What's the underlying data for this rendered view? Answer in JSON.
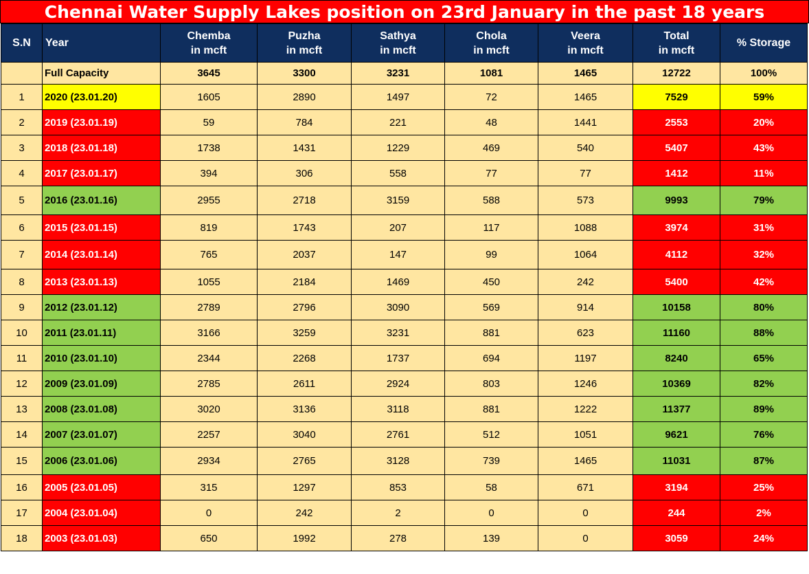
{
  "title": "Chennai Water Supply Lakes position on 23rd January in the past 18 years",
  "colors": {
    "header_bg": "#0f2e5e",
    "cell_bg": "#ffe6a1",
    "red": "#ff0000",
    "yellow": "#ffff00",
    "green": "#92d050"
  },
  "headers": {
    "sn": "S.N",
    "year": "Year",
    "chemba": [
      "Chemba",
      "in mcft"
    ],
    "puzha": [
      "Puzha",
      "in mcft"
    ],
    "sathya": [
      "Sathya",
      "in mcft"
    ],
    "chola": [
      "Chola",
      "in mcft"
    ],
    "veera": [
      "Veera",
      "in mcft"
    ],
    "total": [
      "Total",
      "in mcft"
    ],
    "storage": "% Storage"
  },
  "capacity": {
    "sn": "",
    "year": "Full Capacity",
    "chemba": "3645",
    "puzha": "3300",
    "sathya": "3231",
    "chola": "1081",
    "veera": "1465",
    "total": "12722",
    "storage": "100%"
  },
  "rows": [
    {
      "sn": "1",
      "year": "2020 (23.01.20)",
      "chemba": "1605",
      "puzha": "2890",
      "sathya": "1497",
      "chola": "72",
      "veera": "1465",
      "total": "7529",
      "storage": "59%",
      "status": "yellow"
    },
    {
      "sn": "2",
      "year": "2019 (23.01.19)",
      "chemba": "59",
      "puzha": "784",
      "sathya": "221",
      "chola": "48",
      "veera": "1441",
      "total": "2553",
      "storage": "20%",
      "status": "red"
    },
    {
      "sn": "3",
      "year": "2018 (23.01.18)",
      "chemba": "1738",
      "puzha": "1431",
      "sathya": "1229",
      "chola": "469",
      "veera": "540",
      "total": "5407",
      "storage": "43%",
      "status": "red"
    },
    {
      "sn": "4",
      "year": "2017 (23.01.17)",
      "chemba": "394",
      "puzha": "306",
      "sathya": "558",
      "chola": "77",
      "veera": "77",
      "total": "1412",
      "storage": "11%",
      "status": "red"
    },
    {
      "sn": "5",
      "year": "2016 (23.01.16)",
      "chemba": "2955",
      "puzha": "2718",
      "sathya": "3159",
      "chola": "588",
      "veera": "573",
      "total": "9993",
      "storage": "79%",
      "status": "green"
    },
    {
      "sn": "6",
      "year": "2015 (23.01.15)",
      "chemba": "819",
      "puzha": "1743",
      "sathya": "207",
      "chola": "117",
      "veera": "1088",
      "total": "3974",
      "storage": "31%",
      "status": "red"
    },
    {
      "sn": "7",
      "year": "2014 (23.01.14)",
      "chemba": "765",
      "puzha": "2037",
      "sathya": "147",
      "chola": "99",
      "veera": "1064",
      "total": "4112",
      "storage": "32%",
      "status": "red"
    },
    {
      "sn": "8",
      "year": "2013 (23.01.13)",
      "chemba": "1055",
      "puzha": "2184",
      "sathya": "1469",
      "chola": "450",
      "veera": "242",
      "total": "5400",
      "storage": "42%",
      "status": "red"
    },
    {
      "sn": "9",
      "year": "2012 (23.01.12)",
      "chemba": "2789",
      "puzha": "2796",
      "sathya": "3090",
      "chola": "569",
      "veera": "914",
      "total": "10158",
      "storage": "80%",
      "status": "green"
    },
    {
      "sn": "10",
      "year": "2011 (23.01.11)",
      "chemba": "3166",
      "puzha": "3259",
      "sathya": "3231",
      "chola": "881",
      "veera": "623",
      "total": "11160",
      "storage": "88%",
      "status": "green"
    },
    {
      "sn": "11",
      "year": "2010 (23.01.10)",
      "chemba": "2344",
      "puzha": "2268",
      "sathya": "1737",
      "chola": "694",
      "veera": "1197",
      "total": "8240",
      "storage": "65%",
      "status": "green"
    },
    {
      "sn": "12",
      "year": "2009 (23.01.09)",
      "chemba": "2785",
      "puzha": "2611",
      "sathya": "2924",
      "chola": "803",
      "veera": "1246",
      "total": "10369",
      "storage": "82%",
      "status": "green"
    },
    {
      "sn": "13",
      "year": "2008 (23.01.08)",
      "chemba": "3020",
      "puzha": "3136",
      "sathya": "3118",
      "chola": "881",
      "veera": "1222",
      "total": "11377",
      "storage": "89%",
      "status": "green"
    },
    {
      "sn": "14",
      "year": "2007 (23.01.07)",
      "chemba": "2257",
      "puzha": "3040",
      "sathya": "2761",
      "chola": "512",
      "veera": "1051",
      "total": "9621",
      "storage": "76%",
      "status": "green"
    },
    {
      "sn": "15",
      "year": "2006 (23.01.06)",
      "chemba": "2934",
      "puzha": "2765",
      "sathya": "3128",
      "chola": "739",
      "veera": "1465",
      "total": "11031",
      "storage": "87%",
      "status": "green"
    },
    {
      "sn": "16",
      "year": "2005 (23.01.05)",
      "chemba": "315",
      "puzha": "1297",
      "sathya": "853",
      "chola": "58",
      "veera": "671",
      "total": "3194",
      "storage": "25%",
      "status": "red"
    },
    {
      "sn": "17",
      "year": "2004 (23.01.04)",
      "chemba": "0",
      "puzha": "242",
      "sathya": "2",
      "chola": "0",
      "veera": "0",
      "total": "244",
      "storage": "2%",
      "status": "red"
    },
    {
      "sn": "18",
      "year": "2003 (23.01.03)",
      "chemba": "650",
      "puzha": "1992",
      "sathya": "278",
      "chola": "139",
      "veera": "0",
      "total": "3059",
      "storage": "24%",
      "status": "red"
    }
  ]
}
